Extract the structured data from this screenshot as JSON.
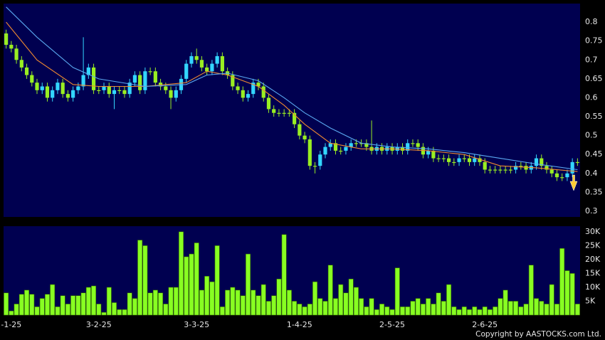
{
  "chart_data": {
    "type": "candlestick",
    "categories": [
      null,
      "-1-25",
      null,
      null,
      null,
      null,
      null,
      null,
      null,
      null,
      null,
      null,
      null,
      null,
      null,
      null,
      null,
      null,
      "3-2-25",
      null,
      null,
      null,
      null,
      null,
      null,
      null,
      null,
      null,
      null,
      null,
      null,
      null,
      null,
      null,
      null,
      null,
      null,
      "3-3-25",
      null,
      null,
      null,
      null,
      null,
      null,
      null,
      null,
      null,
      null,
      null,
      null,
      null,
      null,
      null,
      null,
      null,
      null,
      null,
      "1-4-25",
      null,
      null,
      null,
      null,
      null,
      null,
      null,
      null,
      null,
      null,
      null,
      null,
      null,
      null,
      null,
      null,
      null,
      "2-5-25",
      null,
      null,
      null,
      null,
      null,
      null,
      null,
      null,
      null,
      null,
      null,
      null,
      null,
      null,
      null,
      null,
      null,
      "2-6-25",
      null,
      null,
      null,
      null,
      null,
      null,
      null,
      null,
      null,
      null,
      null,
      null,
      null,
      null,
      null,
      null,
      null,
      null
    ],
    "open": [
      0.77,
      0.74,
      0.73,
      0.7,
      0.68,
      0.66,
      0.64,
      0.62,
      0.63,
      0.6,
      0.62,
      0.64,
      0.61,
      0.6,
      0.62,
      0.63,
      0.66,
      0.68,
      0.62,
      0.62,
      0.63,
      0.61,
      0.62,
      0.62,
      0.61,
      0.64,
      0.66,
      0.62,
      0.67,
      0.67,
      0.64,
      0.63,
      0.62,
      0.6,
      0.62,
      0.65,
      0.69,
      0.71,
      0.7,
      0.68,
      0.67,
      0.69,
      0.71,
      0.67,
      0.66,
      0.63,
      0.62,
      0.6,
      0.61,
      0.64,
      0.63,
      0.6,
      0.57,
      0.56,
      0.56,
      0.56,
      0.56,
      0.53,
      0.5,
      0.49,
      0.42,
      0.42,
      0.45,
      0.47,
      0.48,
      0.46,
      0.46,
      0.47,
      0.48,
      0.48,
      0.48,
      0.47,
      0.46,
      0.47,
      0.46,
      0.47,
      0.46,
      0.47,
      0.46,
      0.48,
      0.48,
      0.47,
      0.45,
      0.46,
      0.44,
      0.44,
      0.44,
      0.43,
      0.43,
      0.44,
      0.44,
      0.43,
      0.44,
      0.43,
      0.41,
      0.41,
      0.41,
      0.41,
      0.41,
      0.41,
      0.42,
      0.42,
      0.41,
      0.42,
      0.44,
      0.42,
      0.41,
      0.4,
      0.39,
      0.39,
      0.4,
      0.43
    ],
    "high": [
      0.78,
      0.75,
      0.74,
      0.71,
      0.69,
      0.67,
      0.65,
      0.64,
      0.64,
      0.63,
      0.65,
      0.65,
      0.62,
      0.63,
      0.64,
      0.76,
      0.69,
      0.69,
      0.63,
      0.64,
      0.64,
      0.63,
      0.63,
      0.63,
      0.65,
      0.67,
      0.67,
      0.68,
      0.68,
      0.68,
      0.65,
      0.64,
      0.63,
      0.63,
      0.66,
      0.7,
      0.72,
      0.73,
      0.71,
      0.69,
      0.7,
      0.72,
      0.72,
      0.68,
      0.67,
      0.64,
      0.63,
      0.62,
      0.65,
      0.65,
      0.64,
      0.61,
      0.58,
      0.57,
      0.57,
      0.57,
      0.57,
      0.54,
      0.51,
      0.5,
      0.43,
      0.46,
      0.48,
      0.49,
      0.49,
      0.47,
      0.48,
      0.49,
      0.49,
      0.49,
      0.49,
      0.54,
      0.48,
      0.48,
      0.48,
      0.48,
      0.48,
      0.48,
      0.49,
      0.49,
      0.49,
      0.48,
      0.47,
      0.47,
      0.45,
      0.45,
      0.45,
      0.44,
      0.45,
      0.45,
      0.45,
      0.45,
      0.45,
      0.44,
      0.42,
      0.42,
      0.42,
      0.42,
      0.42,
      0.43,
      0.43,
      0.43,
      0.43,
      0.45,
      0.45,
      0.43,
      0.42,
      0.41,
      0.4,
      0.41,
      0.44,
      0.44
    ],
    "low": [
      0.73,
      0.72,
      0.69,
      0.67,
      0.65,
      0.63,
      0.61,
      0.61,
      0.59,
      0.59,
      0.61,
      0.6,
      0.59,
      0.59,
      0.61,
      0.62,
      0.65,
      0.61,
      0.61,
      0.61,
      0.6,
      0.57,
      0.61,
      0.6,
      0.6,
      0.63,
      0.61,
      0.61,
      0.66,
      0.63,
      0.62,
      0.61,
      0.57,
      0.59,
      0.61,
      0.64,
      0.68,
      0.69,
      0.67,
      0.66,
      0.66,
      0.68,
      0.66,
      0.65,
      0.62,
      0.61,
      0.59,
      0.59,
      0.6,
      0.62,
      0.59,
      0.56,
      0.55,
      0.55,
      0.55,
      0.55,
      0.52,
      0.49,
      0.48,
      0.41,
      0.4,
      0.41,
      0.44,
      0.46,
      0.45,
      0.45,
      0.45,
      0.46,
      0.47,
      0.47,
      0.46,
      0.45,
      0.45,
      0.45,
      0.45,
      0.45,
      0.45,
      0.45,
      0.45,
      0.47,
      0.46,
      0.44,
      0.44,
      0.43,
      0.43,
      0.43,
      0.42,
      0.42,
      0.42,
      0.43,
      0.42,
      0.42,
      0.42,
      0.4,
      0.4,
      0.4,
      0.4,
      0.4,
      0.4,
      0.4,
      0.41,
      0.4,
      0.4,
      0.41,
      0.41,
      0.4,
      0.39,
      0.38,
      0.38,
      0.38,
      0.39,
      0.42
    ],
    "close": [
      0.74,
      0.73,
      0.7,
      0.68,
      0.66,
      0.64,
      0.62,
      0.63,
      0.6,
      0.62,
      0.64,
      0.61,
      0.6,
      0.62,
      0.63,
      0.66,
      0.68,
      0.62,
      0.62,
      0.63,
      0.61,
      0.62,
      0.62,
      0.61,
      0.64,
      0.66,
      0.62,
      0.67,
      0.67,
      0.64,
      0.63,
      0.62,
      0.6,
      0.62,
      0.65,
      0.69,
      0.71,
      0.7,
      0.68,
      0.67,
      0.69,
      0.71,
      0.67,
      0.66,
      0.63,
      0.62,
      0.6,
      0.61,
      0.64,
      0.63,
      0.6,
      0.57,
      0.56,
      0.56,
      0.56,
      0.56,
      0.53,
      0.5,
      0.49,
      0.42,
      0.42,
      0.45,
      0.47,
      0.48,
      0.46,
      0.46,
      0.47,
      0.48,
      0.48,
      0.48,
      0.47,
      0.46,
      0.47,
      0.46,
      0.47,
      0.46,
      0.47,
      0.46,
      0.48,
      0.48,
      0.47,
      0.45,
      0.46,
      0.44,
      0.44,
      0.44,
      0.43,
      0.43,
      0.44,
      0.44,
      0.43,
      0.44,
      0.43,
      0.41,
      0.41,
      0.41,
      0.41,
      0.41,
      0.41,
      0.42,
      0.42,
      0.41,
      0.42,
      0.44,
      0.42,
      0.41,
      0.4,
      0.39,
      0.39,
      0.4,
      0.43,
      0.43
    ],
    "up_color": "#33d6ff",
    "down_color": "#99ee22",
    "ylim": [
      0.285,
      0.849
    ],
    "yticks": [
      0.3,
      0.35,
      0.4,
      0.45,
      0.5,
      0.55,
      0.6,
      0.65,
      0.7,
      0.75,
      0.8
    ],
    "grid": true,
    "moving_averages": [
      {
        "color": "#f08a30",
        "x": [
          0,
          6,
          13,
          18,
          27,
          35,
          39,
          43,
          49,
          54,
          58,
          63,
          69,
          75,
          82,
          89,
          96,
          103,
          111
        ],
        "values": [
          0.8,
          0.7,
          0.635,
          0.63,
          0.63,
          0.64,
          0.67,
          0.66,
          0.63,
          0.58,
          0.53,
          0.48,
          0.465,
          0.465,
          0.46,
          0.45,
          0.42,
          0.415,
          0.405
        ]
      },
      {
        "color": "#5aa8f0",
        "x": [
          0,
          6,
          13,
          18,
          27,
          35,
          39,
          43,
          49,
          54,
          58,
          63,
          69,
          75,
          82,
          89,
          96,
          103,
          111
        ],
        "values": [
          0.84,
          0.76,
          0.68,
          0.65,
          0.63,
          0.635,
          0.66,
          0.665,
          0.645,
          0.6,
          0.56,
          0.52,
          0.48,
          0.47,
          0.465,
          0.455,
          0.44,
          0.425,
          0.41
        ]
      }
    ],
    "volume": {
      "color": "#88ff22",
      "values": [
        8000,
        1500,
        4000,
        7500,
        9000,
        7500,
        3000,
        6000,
        7500,
        11000,
        3000,
        7000,
        4000,
        7000,
        7000,
        8000,
        10000,
        10500,
        4000,
        1000,
        10000,
        4500,
        2000,
        2000,
        8000,
        6000,
        27000,
        25000,
        8000,
        9000,
        8000,
        4000,
        10000,
        10000,
        30000,
        21000,
        22000,
        26000,
        9000,
        14000,
        12000,
        25000,
        3000,
        9000,
        10000,
        9000,
        7000,
        22000,
        9000,
        7000,
        11000,
        5000,
        7000,
        13000,
        29000,
        9000,
        5000,
        4000,
        3000,
        4000,
        12000,
        6000,
        5000,
        18000,
        6000,
        11000,
        8000,
        13000,
        10000,
        6000,
        3000,
        6000,
        2000,
        4000,
        3000,
        2000,
        17000,
        3000,
        3000,
        5000,
        6000,
        4000,
        6000,
        4000,
        8000,
        5000,
        11000,
        3000,
        2000,
        3000,
        2000,
        3000,
        2000,
        3000,
        2000,
        3000,
        6000,
        9000,
        5000,
        5000,
        3000,
        4000,
        18000,
        6000,
        5000,
        4000,
        11000,
        4000,
        24000,
        16000,
        15000,
        4000
      ],
      "ylim": [
        0,
        32000
      ],
      "yticks": [
        {
          "value": 5000,
          "label": "5K"
        },
        {
          "value": 10000,
          "label": "10K"
        },
        {
          "value": 15000,
          "label": "15K"
        },
        {
          "value": 20000,
          "label": "20K"
        },
        {
          "value": 25000,
          "label": "25K"
        },
        {
          "value": 30000,
          "label": "30K"
        }
      ]
    },
    "copyright": "Copyright by AASTOCKS.com Ltd."
  }
}
